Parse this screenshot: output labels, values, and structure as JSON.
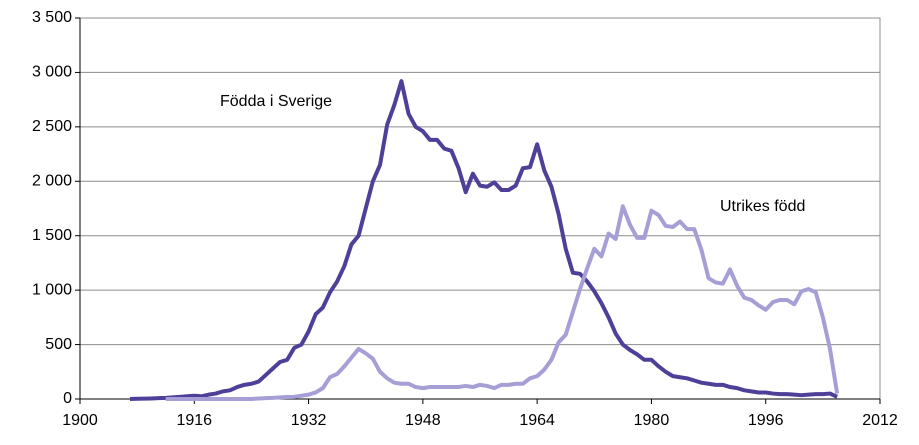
{
  "chart_data": {
    "type": "line",
    "annotations": [
      "Födda i Sverige",
      "Utrikes född"
    ],
    "x": [
      1907,
      1908,
      1909,
      1910,
      1911,
      1912,
      1913,
      1914,
      1915,
      1916,
      1917,
      1918,
      1919,
      1920,
      1921,
      1922,
      1923,
      1924,
      1925,
      1926,
      1927,
      1928,
      1929,
      1930,
      1931,
      1932,
      1933,
      1934,
      1935,
      1936,
      1937,
      1938,
      1939,
      1940,
      1941,
      1942,
      1943,
      1944,
      1945,
      1946,
      1947,
      1948,
      1949,
      1950,
      1951,
      1952,
      1953,
      1954,
      1955,
      1956,
      1957,
      1958,
      1959,
      1960,
      1961,
      1962,
      1963,
      1964,
      1965,
      1966,
      1967,
      1968,
      1969,
      1970,
      1971,
      1972,
      1973,
      1974,
      1975,
      1976,
      1977,
      1978,
      1979,
      1980,
      1981,
      1982,
      1983,
      1984,
      1985,
      1986,
      1987,
      1988,
      1989,
      1990,
      1991,
      1992,
      1993,
      1994,
      1995,
      1996,
      1997,
      1998,
      1999,
      2000,
      2001,
      2002,
      2003,
      2004,
      2005,
      2006
    ],
    "series": [
      {
        "name": "Födda i Sverige",
        "color": "#4f3f99",
        "values": [
          0,
          2,
          3,
          5,
          8,
          10,
          15,
          20,
          25,
          30,
          25,
          40,
          50,
          70,
          80,
          110,
          130,
          140,
          160,
          220,
          280,
          340,
          360,
          470,
          500,
          620,
          780,
          840,
          980,
          1080,
          1220,
          1420,
          1500,
          1750,
          2000,
          2150,
          2520,
          2700,
          2920,
          2620,
          2500,
          2460,
          2380,
          2380,
          2300,
          2280,
          2120,
          1900,
          2070,
          1960,
          1950,
          1990,
          1920,
          1920,
          1960,
          2120,
          2130,
          2340,
          2100,
          1950,
          1700,
          1380,
          1160,
          1150,
          1080,
          990,
          880,
          750,
          600,
          500,
          450,
          410,
          360,
          360,
          300,
          250,
          210,
          200,
          190,
          170,
          150,
          140,
          130,
          130,
          110,
          100,
          80,
          70,
          60,
          60,
          50,
          45,
          45,
          40,
          35,
          40,
          45,
          45,
          50,
          20
        ]
      },
      {
        "name": "Utrikes född",
        "color": "#a59fd6",
        "values": [
          null,
          null,
          null,
          null,
          null,
          0,
          0,
          0,
          0,
          0,
          0,
          0,
          0,
          0,
          0,
          0,
          0,
          0,
          5,
          8,
          10,
          15,
          18,
          20,
          30,
          40,
          60,
          100,
          200,
          230,
          300,
          380,
          460,
          420,
          370,
          250,
          190,
          150,
          140,
          140,
          110,
          100,
          110,
          110,
          110,
          110,
          110,
          120,
          110,
          130,
          120,
          100,
          130,
          130,
          140,
          140,
          190,
          210,
          270,
          360,
          520,
          590,
          800,
          1010,
          1200,
          1380,
          1310,
          1520,
          1470,
          1770,
          1600,
          1480,
          1480,
          1730,
          1690,
          1590,
          1580,
          1630,
          1560,
          1560,
          1370,
          1110,
          1070,
          1060,
          1190,
          1040,
          930,
          910,
          860,
          820,
          890,
          910,
          910,
          870,
          990,
          1010,
          980,
          750,
          460,
          50
        ]
      }
    ],
    "xlim": [
      1900,
      2012
    ],
    "xticks": [
      1900,
      1916,
      1932,
      1948,
      1964,
      1980,
      1996,
      2012
    ],
    "ylim": [
      0,
      3500
    ],
    "yticks": [
      0,
      500,
      {
        "value": 1000,
        "label": "1 000"
      },
      {
        "value": 1500,
        "label": "1 500"
      },
      {
        "value": 2000,
        "label": "2 000"
      },
      {
        "value": 2500,
        "label": "2 500"
      },
      {
        "value": 3000,
        "label": "3 000"
      },
      {
        "value": 3500,
        "label": "3 500"
      }
    ],
    "grid": true
  }
}
